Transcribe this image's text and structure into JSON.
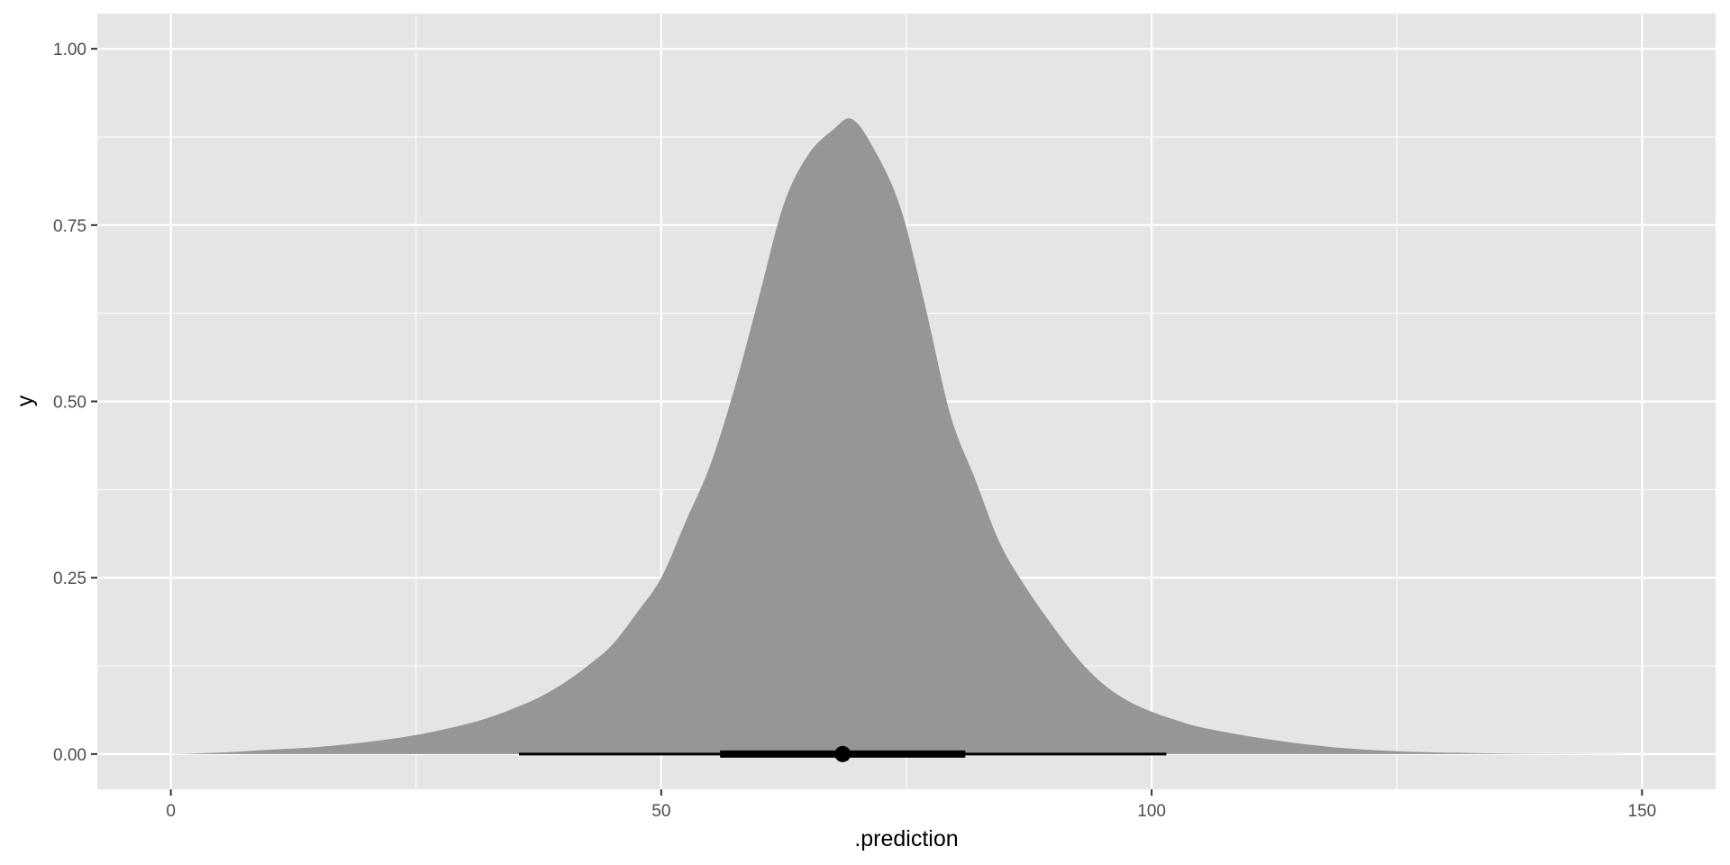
{
  "chart_data": {
    "type": "area",
    "title": "",
    "xlabel": ".prediction",
    "ylabel": "y",
    "xlim": [
      -7.5,
      157.5
    ],
    "ylim": [
      -0.05,
      1.05
    ],
    "x_ticks": [
      0,
      50,
      100,
      150
    ],
    "x_tick_labels": [
      "0",
      "50",
      "100",
      "150"
    ],
    "y_ticks": [
      0,
      0.25,
      0.5,
      0.75,
      1.0
    ],
    "y_tick_labels": [
      "0.00",
      "0.25",
      "0.50",
      "0.75",
      "1.00"
    ],
    "grid": true,
    "legend": "none",
    "colors": {
      "panel": "#e5e5e5",
      "grid": "#ffffff",
      "fill": "#969696",
      "interval": "#000000"
    },
    "density": {
      "x": [
        0,
        5,
        10,
        15,
        20,
        25,
        30,
        32.5,
        35,
        37.5,
        40,
        42.5,
        45,
        47.5,
        50,
        52.5,
        55,
        57.5,
        60,
        62.5,
        65,
        67.5,
        69.5,
        72,
        74.5,
        77,
        79.5,
        82,
        84.5,
        87,
        90,
        92.5,
        95,
        97.5,
        100,
        102.5,
        105,
        110,
        115,
        120,
        125,
        130,
        135,
        140,
        145,
        150
      ],
      "y": [
        0.0,
        0.002,
        0.006,
        0.01,
        0.017,
        0.027,
        0.042,
        0.052,
        0.065,
        0.08,
        0.1,
        0.125,
        0.155,
        0.2,
        0.25,
        0.33,
        0.41,
        0.52,
        0.65,
        0.78,
        0.85,
        0.885,
        0.9,
        0.85,
        0.77,
        0.63,
        0.48,
        0.39,
        0.3,
        0.24,
        0.18,
        0.135,
        0.1,
        0.076,
        0.06,
        0.048,
        0.038,
        0.025,
        0.015,
        0.008,
        0.004,
        0.002,
        0.001,
        0.0005,
        0.0002,
        0.0
      ]
    },
    "point_interval": {
      "point": 68.5,
      "inner_interval": [
        56,
        81
      ],
      "outer_interval": [
        35.5,
        101.5
      ],
      "y": 0
    }
  }
}
